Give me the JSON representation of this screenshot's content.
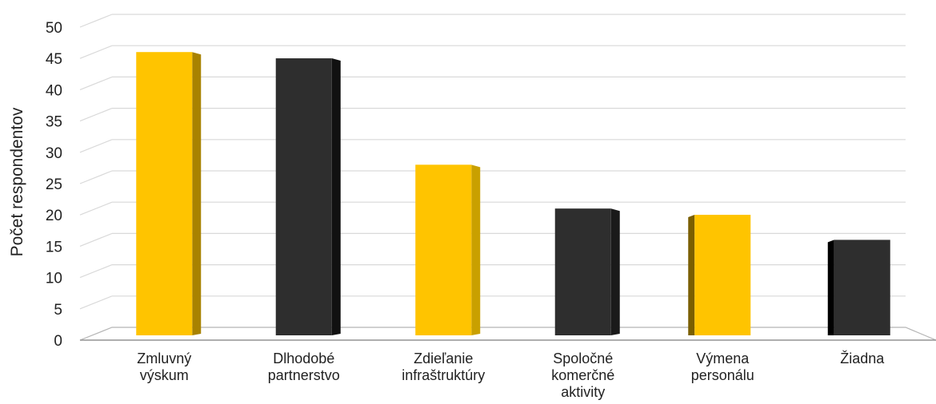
{
  "chart_data": {
    "type": "bar",
    "title": "",
    "xlabel": "",
    "ylabel": "Počet respondentov",
    "ylim": [
      0,
      50
    ],
    "yticks": [
      0,
      5,
      10,
      15,
      20,
      25,
      30,
      35,
      40,
      45,
      50
    ],
    "grid": true,
    "categories": [
      [
        "Zmluvný",
        "výskum"
      ],
      [
        "Dlhodobé",
        "partnerstvo"
      ],
      [
        "Zdieľanie",
        "infraštruktúry"
      ],
      [
        "Spoločné",
        "komerčné",
        "aktivity"
      ],
      [
        "Výmena",
        "personálu"
      ],
      [
        "Žiadna"
      ]
    ],
    "values": [
      45,
      44,
      27,
      20,
      19,
      15
    ],
    "bar_colors": [
      "#FFC400",
      "#2E2E2E",
      "#FFC400",
      "#2E2E2E",
      "#FFC400",
      "#2E2E2E"
    ],
    "bar_side_colors": [
      "#A88200",
      "#111111",
      "#C9A000",
      "#1A1A1A",
      "#7A5F00",
      "#000000"
    ]
  }
}
